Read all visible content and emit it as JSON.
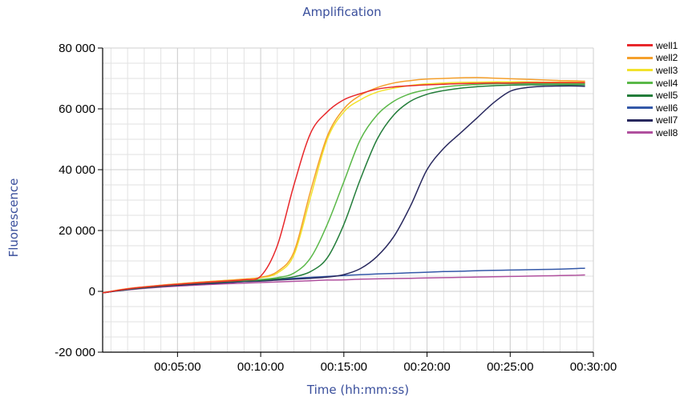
{
  "chart_data": {
    "type": "line",
    "title": "Amplification",
    "xlabel": "Time (hh:mm:ss)",
    "ylabel": "Fluorescence",
    "xlim": [
      "00:00:30",
      "00:30:00"
    ],
    "ylim": [
      -20000,
      80000
    ],
    "x_unit": "minutes",
    "x_tick_labels": [
      "00:05:00",
      "00:10:00",
      "00:15:00",
      "00:20:00",
      "00:25:00",
      "00:30:00"
    ],
    "y_tick_labels": [
      "-20 000",
      "0",
      "20 000",
      "40 000",
      "60 000",
      "80 000"
    ],
    "grid": true,
    "legend_position": "top-right",
    "x": [
      0.5,
      2,
      4,
      6,
      8,
      9,
      10,
      11,
      12,
      13,
      14,
      15,
      16,
      17,
      18,
      19,
      20,
      21,
      22,
      23,
      24,
      25,
      26,
      27,
      28,
      29,
      29.5
    ],
    "series": [
      {
        "name": "well1",
        "color": "#e8282b",
        "values": [
          -500,
          800,
          1900,
          2700,
          3400,
          3800,
          5000,
          15000,
          35000,
          52000,
          59000,
          63000,
          65000,
          66500,
          67200,
          67600,
          67900,
          68100,
          68300,
          68400,
          68500,
          68500,
          68600,
          68600,
          68600,
          68600,
          68600
        ]
      },
      {
        "name": "well2",
        "color": "#f5a02c",
        "values": [
          -500,
          900,
          2000,
          2900,
          3600,
          4000,
          4600,
          6500,
          13000,
          33000,
          51000,
          60000,
          64500,
          67000,
          68500,
          69300,
          69800,
          70000,
          70200,
          70300,
          70100,
          69900,
          69700,
          69500,
          69300,
          69200,
          69100
        ]
      },
      {
        "name": "well3",
        "color": "#f2e22c",
        "values": [
          -500,
          900,
          2000,
          2900,
          3600,
          4000,
          4500,
          6000,
          12000,
          31000,
          50000,
          59000,
          63000,
          65500,
          66800,
          67700,
          68200,
          68500,
          68700,
          68800,
          68900,
          68900,
          68900,
          68800,
          68800,
          68800,
          68700
        ]
      },
      {
        "name": "well4",
        "color": "#5ab848",
        "values": [
          -500,
          800,
          1900,
          2700,
          3300,
          3600,
          3900,
          4500,
          6000,
          11000,
          22000,
          36000,
          50000,
          58000,
          62500,
          65000,
          66300,
          67200,
          67700,
          68000,
          68200,
          68300,
          68300,
          68300,
          68300,
          68300,
          68300
        ]
      },
      {
        "name": "well5",
        "color": "#237d3a",
        "values": [
          -500,
          700,
          1800,
          2600,
          3200,
          3500,
          3700,
          4100,
          4800,
          6500,
          11000,
          22000,
          37000,
          50000,
          58000,
          62500,
          64800,
          66000,
          66800,
          67300,
          67600,
          67800,
          67900,
          67900,
          67900,
          67900,
          67900
        ]
      },
      {
        "name": "well6",
        "color": "#3458a8",
        "values": [
          -500,
          600,
          1600,
          2300,
          2900,
          3200,
          3500,
          3900,
          4300,
          4600,
          4900,
          5200,
          5500,
          5700,
          5900,
          6100,
          6300,
          6500,
          6600,
          6800,
          6900,
          7000,
          7100,
          7200,
          7300,
          7500,
          7600
        ]
      },
      {
        "name": "well7",
        "color": "#28285e",
        "values": [
          -500,
          600,
          1600,
          2300,
          2900,
          3200,
          3400,
          3700,
          4000,
          4300,
          4700,
          5500,
          7500,
          11500,
          18000,
          28000,
          40000,
          47000,
          52000,
          57000,
          62000,
          65800,
          67000,
          67400,
          67500,
          67500,
          67400
        ]
      },
      {
        "name": "well8",
        "color": "#b0509e",
        "values": [
          -500,
          500,
          1400,
          2000,
          2500,
          2700,
          2900,
          3100,
          3300,
          3500,
          3700,
          3800,
          4000,
          4100,
          4200,
          4300,
          4400,
          4500,
          4600,
          4700,
          4800,
          4900,
          5000,
          5100,
          5200,
          5300,
          5400
        ]
      }
    ]
  }
}
